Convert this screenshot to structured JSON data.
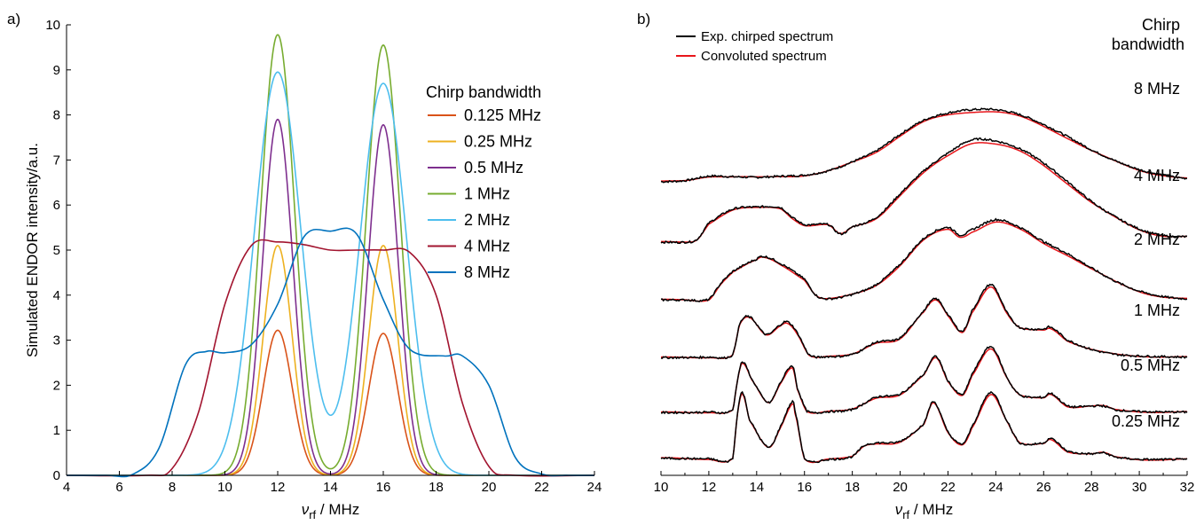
{
  "panels": {
    "a_label": "a)",
    "b_label": "b)"
  },
  "chart_data": [
    {
      "type": "line",
      "panel": "a)",
      "ylabel": "Simulated ENDOR intensity/a.u.",
      "xlabel_main": "ν",
      "xlabel_sub": "rf",
      "xlabel_unit": " / MHz",
      "xlim": [
        4,
        24
      ],
      "ylim": [
        0,
        10
      ],
      "xticks": [
        "4",
        "6",
        "8",
        "10",
        "12",
        "14",
        "16",
        "18",
        "20",
        "22",
        "24"
      ],
      "yticks": [
        "0",
        "1",
        "2",
        "3",
        "4",
        "5",
        "6",
        "7",
        "8",
        "9",
        "10"
      ],
      "legend_title": "Chirp bandwidth",
      "legend_position": "right",
      "series": [
        {
          "name": "0.125 MHz",
          "color": "#d95319",
          "shape": "peaks",
          "peaks": [
            [
              12,
              3.22
            ],
            [
              16,
              3.15
            ]
          ],
          "width": 0.55
        },
        {
          "name": "0.25 MHz",
          "color": "#edb120",
          "shape": "peaks",
          "peaks": [
            [
              12,
              5.1
            ],
            [
              16,
              5.1
            ]
          ],
          "width": 0.55
        },
        {
          "name": "0.5 MHz",
          "color": "#7e2f8e",
          "shape": "peaks",
          "peaks": [
            [
              12,
              7.9
            ],
            [
              16,
              7.78
            ]
          ],
          "width": 0.57
        },
        {
          "name": "1 MHz",
          "color": "#77ac30",
          "shape": "peaks",
          "peaks": [
            [
              12,
              9.78
            ],
            [
              16,
              9.55
            ]
          ],
          "width": 0.64
        },
        {
          "name": "2 MHz",
          "color": "#4dbeee",
          "shape": "peaks",
          "peaks": [
            [
              12,
              8.95
            ],
            [
              16,
              8.7
            ]
          ],
          "width": 0.88
        },
        {
          "name": "4 MHz",
          "color": "#a2142f",
          "shape": "plateau",
          "x": [
            7,
            8,
            9,
            10,
            11,
            12,
            13,
            14,
            15,
            16,
            17,
            18,
            19,
            20,
            21
          ],
          "y": [
            0,
            0.15,
            1.4,
            3.8,
            5.1,
            5.18,
            5.12,
            5.0,
            5.0,
            5.0,
            4.95,
            4.0,
            1.6,
            0.2,
            0
          ]
        },
        {
          "name": "8 MHz",
          "color": "#0072bd",
          "shape": "plateau",
          "x": [
            5.5,
            6.5,
            7.5,
            8.5,
            9.3,
            10,
            11,
            12,
            13,
            14,
            15,
            16,
            17,
            18.3,
            19,
            20,
            21,
            22,
            23
          ],
          "y": [
            0,
            0.02,
            0.6,
            2.45,
            2.75,
            2.72,
            2.9,
            3.8,
            5.3,
            5.42,
            5.35,
            3.9,
            2.8,
            2.65,
            2.65,
            2.0,
            0.4,
            0.03,
            0
          ]
        }
      ]
    },
    {
      "type": "line",
      "panel": "b)",
      "xlabel_main": "ν",
      "xlabel_sub": "rf",
      "xlabel_unit": " / MHz",
      "xlim": [
        10,
        32
      ],
      "xticks": [
        "10",
        "12",
        "14",
        "16",
        "18",
        "20",
        "22",
        "24",
        "26",
        "28",
        "30",
        "32"
      ],
      "legend_position": "top-left",
      "legend": [
        {
          "name": "Exp. chirped spectrum",
          "color": "#000000"
        },
        {
          "name": "Convoluted spectrum",
          "color": "#e8161b"
        }
      ],
      "header_line1": "Chirp",
      "header_line2": "bandwidth",
      "traces": [
        {
          "label": "8 MHz",
          "offset": 5.05,
          "x": [
            10,
            11,
            12,
            13,
            14,
            15,
            16,
            17,
            18,
            19,
            20,
            21,
            22,
            23,
            24,
            25,
            26,
            27,
            28,
            29,
            30,
            31,
            32
          ],
          "y": [
            0,
            0.02,
            0.1,
            0.09,
            0.08,
            0.1,
            0.12,
            0.2,
            0.36,
            0.56,
            0.86,
            1.12,
            1.25,
            1.31,
            1.31,
            1.22,
            1.04,
            0.82,
            0.58,
            0.38,
            0.22,
            0.12,
            0.06
          ]
        },
        {
          "label": "4 MHz",
          "offset": 3.95,
          "x": [
            10,
            11,
            11.5,
            12,
            13,
            14,
            15,
            15.5,
            16,
            17,
            17.5,
            18,
            19,
            20,
            21,
            22,
            23,
            24,
            25,
            26,
            27,
            28,
            29,
            30,
            31,
            32
          ],
          "y": [
            0,
            0,
            0.05,
            0.35,
            0.6,
            0.64,
            0.63,
            0.45,
            0.32,
            0.32,
            0.15,
            0.28,
            0.45,
            0.88,
            1.3,
            1.62,
            1.86,
            1.84,
            1.7,
            1.44,
            1.1,
            0.74,
            0.46,
            0.24,
            0.12,
            0.1
          ]
        },
        {
          "label": "2 MHz",
          "offset": 2.9,
          "x": [
            10,
            11,
            12,
            12.5,
            13,
            14,
            14.3,
            15,
            16,
            16.5,
            17,
            18,
            19,
            20,
            21,
            22,
            22.5,
            23,
            24,
            25,
            26,
            27,
            28,
            29,
            30,
            31,
            32
          ],
          "y": [
            0,
            0,
            0.01,
            0.3,
            0.52,
            0.74,
            0.79,
            0.66,
            0.38,
            0.08,
            0.02,
            0.1,
            0.28,
            0.65,
            1.12,
            1.32,
            1.18,
            1.28,
            1.46,
            1.32,
            1.06,
            0.84,
            0.58,
            0.34,
            0.16,
            0.06,
            0.02
          ]
        },
        {
          "label": "1 MHz",
          "offset": 1.85,
          "x": [
            10,
            12,
            13,
            13.3,
            13.7,
            14.4,
            15,
            15.3,
            15.7,
            16.2,
            17,
            18,
            19,
            20,
            21,
            21.5,
            22,
            22.6,
            23,
            23.8,
            24.5,
            25,
            26,
            26.3,
            27,
            28,
            29,
            30,
            32
          ],
          "y": [
            0,
            0.01,
            0.05,
            0.62,
            0.74,
            0.42,
            0.6,
            0.65,
            0.45,
            0.05,
            0.02,
            0.06,
            0.28,
            0.36,
            0.85,
            1.07,
            0.78,
            0.48,
            0.85,
            1.33,
            0.8,
            0.55,
            0.52,
            0.55,
            0.32,
            0.15,
            0.06,
            0.03,
            0.01
          ]
        },
        {
          "label": "0.5 MHz",
          "offset": 0.85,
          "x": [
            10,
            12,
            13,
            13.2,
            13.4,
            13.8,
            14.5,
            15,
            15.5,
            15.7,
            16.1,
            17,
            18,
            19,
            20,
            21,
            21.5,
            22,
            22.6,
            23,
            23.8,
            24.5,
            25,
            26,
            26.3,
            27,
            28,
            28.5,
            29,
            30,
            32
          ],
          "y": [
            0,
            0.01,
            0.05,
            0.6,
            0.92,
            0.6,
            0.18,
            0.55,
            0.85,
            0.45,
            0.03,
            0.02,
            0.06,
            0.28,
            0.34,
            0.7,
            1.02,
            0.58,
            0.33,
            0.7,
            1.2,
            0.62,
            0.32,
            0.28,
            0.35,
            0.12,
            0.12,
            0.12,
            0.05,
            0.02,
            0.01
          ]
        },
        {
          "label": "0.25 MHz",
          "offset": 0.0,
          "x": [
            10,
            12,
            13,
            13.2,
            13.4,
            13.7,
            14.5,
            15,
            15.5,
            15.6,
            16,
            17,
            18,
            18.5,
            19,
            20,
            21,
            21.4,
            22,
            22.6,
            23,
            23.8,
            24.5,
            25,
            26,
            26.3,
            27,
            28,
            28.5,
            29,
            30,
            32
          ],
          "y": [
            0.02,
            0.01,
            0.02,
            0.85,
            1.22,
            0.72,
            0.22,
            0.6,
            1.05,
            0.88,
            0.02,
            0.0,
            0.05,
            0.25,
            0.3,
            0.33,
            0.65,
            1.05,
            0.5,
            0.28,
            0.6,
            1.22,
            0.68,
            0.3,
            0.3,
            0.38,
            0.15,
            0.1,
            0.12,
            0.04,
            0.0,
            0.0
          ]
        }
      ]
    }
  ]
}
